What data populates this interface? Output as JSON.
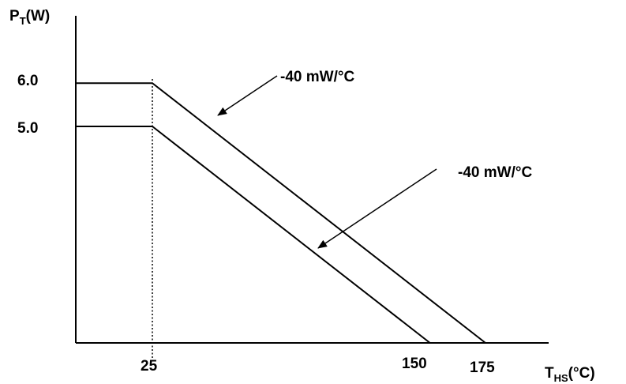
{
  "chart_data": {
    "type": "line",
    "title": "",
    "ylabel": {
      "main": "P",
      "sub": "T",
      "unit": "(W)"
    },
    "xlabel": {
      "main": "T",
      "sub": "HS",
      "unit": "(°C)"
    },
    "y_ticks": [
      {
        "value": 6.0,
        "label": "6.0"
      },
      {
        "value": 5.0,
        "label": "5.0"
      }
    ],
    "x_ticks": [
      {
        "value": 25,
        "label": "25"
      },
      {
        "value": 150,
        "label": "150"
      },
      {
        "value": 175,
        "label": "175"
      }
    ],
    "series": [
      {
        "points": [
          [
            0,
            6.0
          ],
          [
            25,
            6.0
          ],
          [
            175,
            0
          ]
        ]
      },
      {
        "points": [
          [
            0,
            5.0
          ],
          [
            25,
            5.0
          ],
          [
            150,
            0
          ]
        ]
      }
    ],
    "reference_lines": [
      {
        "orientation": "vertical",
        "x": 25,
        "style": "dotted"
      }
    ],
    "annotations": [
      {
        "text": "-40 mW/°C",
        "series_index": 0
      },
      {
        "text": "-40 mW/°C",
        "series_index": 1
      }
    ],
    "xlim": [
      0,
      190
    ],
    "ylim": [
      0,
      7
    ],
    "grid": false,
    "legend": "none"
  }
}
